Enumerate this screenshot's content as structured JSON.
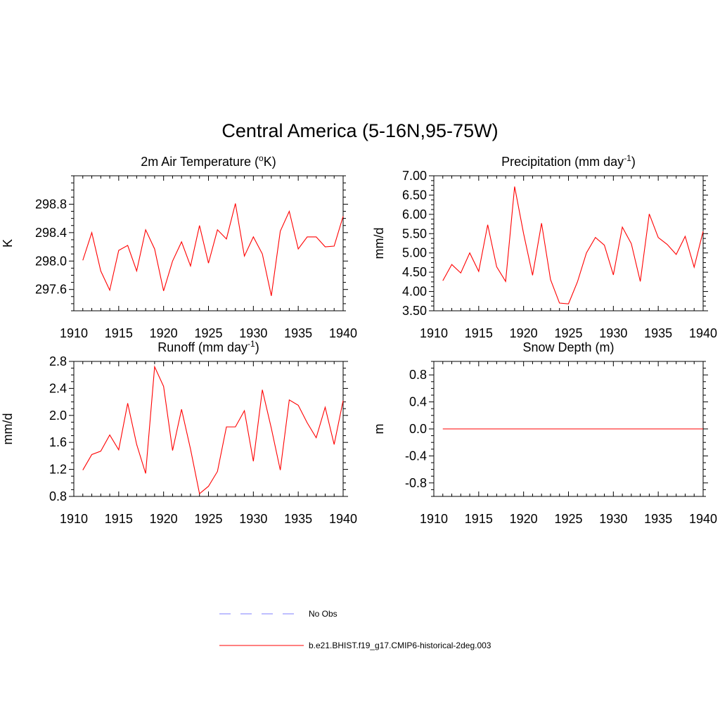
{
  "title": "Central America (5-16N,95-75W)",
  "series_color": "#ff0000",
  "obs_color": "#9999ff",
  "legend": {
    "obs_label": "No Obs",
    "model_label": "b.e21.BHIST.f19_g17.CMIP6-historical-2deg.003"
  },
  "chart_data": [
    {
      "type": "line",
      "title": "2m Air Temperature (",
      "title_sup": "o",
      "title_after": "K)",
      "ylabel": "K",
      "xlim": [
        1910,
        1940
      ],
      "ylim": [
        297.3,
        299.2
      ],
      "xticks": [
        1910,
        1915,
        1920,
        1925,
        1930,
        1935,
        1940
      ],
      "yticks": [
        297.6,
        298.0,
        298.4,
        298.8
      ],
      "ytick_labels": [
        "297.6",
        "298.0",
        "298.4",
        "298.8"
      ],
      "x": [
        1911,
        1912,
        1913,
        1914,
        1915,
        1916,
        1917,
        1918,
        1919,
        1920,
        1921,
        1922,
        1923,
        1924,
        1925,
        1926,
        1927,
        1928,
        1929,
        1930,
        1931,
        1932,
        1933,
        1934,
        1935,
        1936,
        1937,
        1938,
        1939,
        1940
      ],
      "values": [
        298.01,
        298.4,
        297.86,
        297.59,
        298.15,
        298.22,
        297.86,
        298.44,
        298.17,
        297.58,
        298.0,
        298.27,
        297.93,
        298.5,
        297.97,
        298.44,
        298.31,
        298.81,
        298.07,
        298.34,
        298.1,
        297.51,
        298.42,
        298.7,
        298.17,
        298.34,
        298.34,
        298.2,
        298.21,
        298.63
      ]
    },
    {
      "type": "line",
      "title": "Precipitation (mm day",
      "title_sup": "-1",
      "title_after": ")",
      "ylabel": "mm/d",
      "xlim": [
        1910,
        1940
      ],
      "ylim": [
        3.5,
        7.0
      ],
      "xticks": [
        1910,
        1915,
        1920,
        1925,
        1930,
        1935,
        1940
      ],
      "yticks": [
        3.5,
        4.0,
        4.5,
        5.0,
        5.5,
        6.0,
        6.5,
        7.0
      ],
      "ytick_labels": [
        "3.50",
        "4.00",
        "4.50",
        "5.00",
        "5.50",
        "6.00",
        "6.50",
        "7.00"
      ],
      "x": [
        1911,
        1912,
        1913,
        1914,
        1915,
        1916,
        1917,
        1918,
        1919,
        1920,
        1921,
        1922,
        1923,
        1924,
        1925,
        1926,
        1927,
        1928,
        1929,
        1930,
        1931,
        1932,
        1933,
        1934,
        1935,
        1936,
        1937,
        1938,
        1939,
        1940
      ],
      "values": [
        4.28,
        4.7,
        4.48,
        5.0,
        4.52,
        5.73,
        4.64,
        4.26,
        6.72,
        5.5,
        4.42,
        5.77,
        4.31,
        3.7,
        3.68,
        4.25,
        5.0,
        5.4,
        5.2,
        4.43,
        5.67,
        5.24,
        4.26,
        6.01,
        5.4,
        5.22,
        4.96,
        5.43,
        4.63,
        5.56
      ]
    },
    {
      "type": "line",
      "title": "Runoff (mm day",
      "title_sup": "-1",
      "title_after": ")",
      "ylabel": "mm/d",
      "xlim": [
        1910,
        1940
      ],
      "ylim": [
        0.8,
        2.8
      ],
      "xticks": [
        1910,
        1915,
        1920,
        1925,
        1930,
        1935,
        1940
      ],
      "yticks": [
        0.8,
        1.2,
        1.6,
        2.0,
        2.4,
        2.8
      ],
      "ytick_labels": [
        "0.8",
        "1.2",
        "1.6",
        "2.0",
        "2.4",
        "2.8"
      ],
      "x": [
        1911,
        1912,
        1913,
        1914,
        1915,
        1916,
        1917,
        1918,
        1919,
        1920,
        1921,
        1922,
        1923,
        1924,
        1925,
        1926,
        1927,
        1928,
        1929,
        1930,
        1931,
        1932,
        1933,
        1934,
        1935,
        1936,
        1937,
        1938,
        1939,
        1940
      ],
      "values": [
        1.19,
        1.42,
        1.47,
        1.71,
        1.49,
        2.18,
        1.57,
        1.14,
        2.72,
        2.43,
        1.48,
        2.09,
        1.5,
        0.84,
        0.95,
        1.17,
        1.83,
        1.83,
        2.07,
        1.32,
        2.38,
        1.81,
        1.19,
        2.23,
        2.15,
        1.89,
        1.67,
        2.12,
        1.57,
        2.22
      ]
    },
    {
      "type": "line",
      "title": "Snow Depth (m)",
      "title_sup": "",
      "title_after": "",
      "ylabel": "m",
      "xlim": [
        1910,
        1940
      ],
      "ylim": [
        -1.0,
        1.0
      ],
      "xticks": [
        1910,
        1915,
        1920,
        1925,
        1930,
        1935,
        1940
      ],
      "yticks": [
        -0.8,
        -0.4,
        0.0,
        0.4,
        0.8
      ],
      "ytick_labels": [
        "-0.8",
        "-0.4",
        "0.0",
        "0.4",
        "0.8"
      ],
      "x": [
        1911,
        1912,
        1913,
        1914,
        1915,
        1916,
        1917,
        1918,
        1919,
        1920,
        1921,
        1922,
        1923,
        1924,
        1925,
        1926,
        1927,
        1928,
        1929,
        1930,
        1931,
        1932,
        1933,
        1934,
        1935,
        1936,
        1937,
        1938,
        1939,
        1940
      ],
      "values": [
        0,
        0,
        0,
        0,
        0,
        0,
        0,
        0,
        0,
        0,
        0,
        0,
        0,
        0,
        0,
        0,
        0,
        0,
        0,
        0,
        0,
        0,
        0,
        0,
        0,
        0,
        0,
        0,
        0,
        0
      ]
    }
  ]
}
